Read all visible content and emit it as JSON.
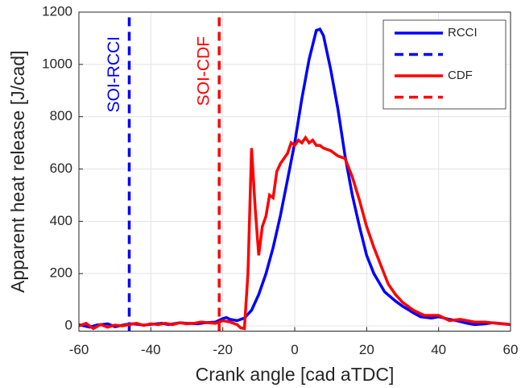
{
  "chart_data": {
    "type": "line",
    "xlabel": "Crank angle [cad aTDC]",
    "ylabel": "Apparent heat release [J/cad]",
    "xlim": [
      -60,
      60
    ],
    "xticks": [
      -60,
      -40,
      -20,
      0,
      20,
      40,
      60
    ],
    "ylim": [
      -20,
      1200
    ],
    "yticks": [
      0,
      200,
      400,
      600,
      800,
      1000,
      1200
    ],
    "grid": true,
    "legend": "upper right",
    "annotations": [
      {
        "text": "SOI-RCCI",
        "x": -46,
        "color": "#0000ff"
      },
      {
        "text": "SOI-CDF",
        "x": -21,
        "color": "#ff0000"
      }
    ],
    "series": [
      {
        "name": "RCCI",
        "color": "#0000ff",
        "dash": false,
        "x": [
          -60,
          -57,
          -55,
          -52,
          -50,
          -47,
          -45,
          -42,
          -40,
          -37,
          -35,
          -32,
          -30,
          -27,
          -25,
          -22,
          -20,
          -19,
          -18,
          -16,
          -14,
          -12,
          -10,
          -8,
          -6,
          -4,
          -2,
          0,
          2,
          4,
          6,
          7,
          8,
          10,
          12,
          14,
          16,
          18,
          20,
          22,
          25,
          28,
          30,
          33,
          35,
          38,
          40,
          43,
          45,
          48,
          50,
          53,
          55,
          58,
          60
        ],
        "values": [
          5,
          -5,
          3,
          8,
          -3,
          5,
          8,
          3,
          6,
          10,
          5,
          12,
          10,
          8,
          12,
          15,
          28,
          32,
          25,
          20,
          30,
          60,
          120,
          200,
          300,
          420,
          560,
          700,
          870,
          1020,
          1130,
          1135,
          1110,
          980,
          830,
          650,
          500,
          380,
          270,
          200,
          130,
          95,
          75,
          50,
          35,
          30,
          35,
          25,
          20,
          10,
          5,
          8,
          12,
          8,
          5
        ]
      },
      {
        "name": null,
        "color": "#0000ff",
        "dash": true,
        "x": [
          -46,
          -46
        ],
        "values": [
          -20,
          1200
        ]
      },
      {
        "name": "CDF",
        "color": "#ff0000",
        "dash": false,
        "x": [
          -60,
          -58,
          -56,
          -54,
          -52,
          -50,
          -48,
          -46,
          -44,
          -42,
          -40,
          -38,
          -36,
          -34,
          -32,
          -30,
          -28,
          -26,
          -24,
          -22,
          -20,
          -18,
          -16,
          -15,
          -14,
          -13,
          -12,
          -11,
          -10,
          -9,
          -8,
          -7,
          -6,
          -5,
          -4,
          -3,
          -2,
          -1,
          0,
          1,
          2,
          3,
          4,
          5,
          6,
          7,
          8,
          10,
          12,
          14,
          16,
          18,
          20,
          22,
          24,
          26,
          28,
          30,
          33,
          36,
          40,
          43,
          46,
          50,
          53,
          56,
          60
        ],
        "values": [
          0,
          10,
          -10,
          5,
          -5,
          3,
          0,
          5,
          10,
          2,
          8,
          5,
          10,
          5,
          12,
          8,
          10,
          15,
          12,
          10,
          20,
          15,
          5,
          -8,
          -10,
          200,
          680,
          450,
          270,
          380,
          420,
          500,
          490,
          590,
          620,
          640,
          660,
          700,
          690,
          710,
          700,
          720,
          700,
          710,
          690,
          690,
          680,
          670,
          650,
          640,
          570,
          480,
          380,
          300,
          230,
          160,
          120,
          90,
          60,
          40,
          40,
          20,
          25,
          15,
          15,
          10,
          5
        ]
      },
      {
        "name": null,
        "color": "#ff0000",
        "dash": true,
        "x": [
          -21,
          -21
        ],
        "values": [
          -20,
          1200
        ]
      }
    ]
  }
}
